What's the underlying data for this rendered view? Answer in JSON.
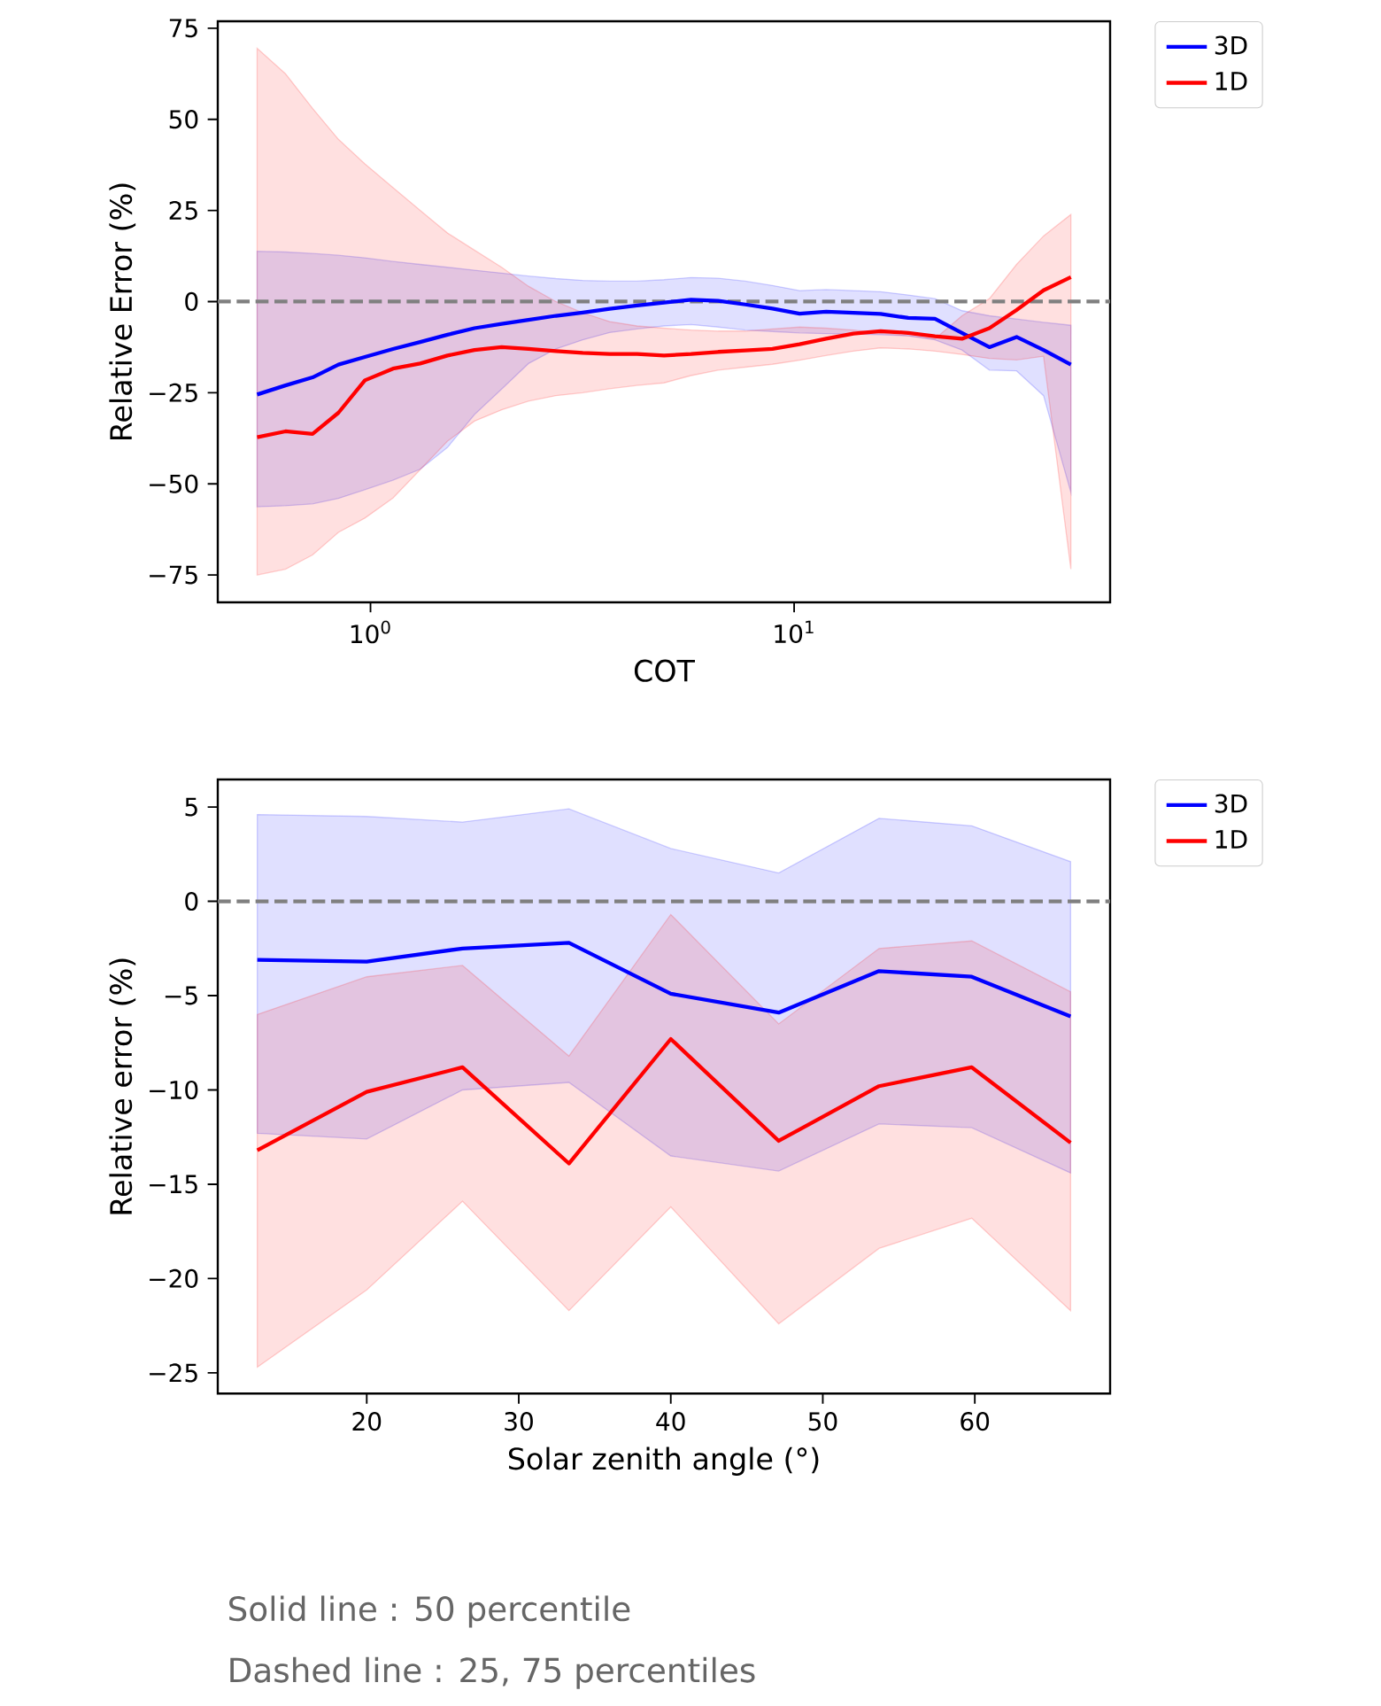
{
  "chart_data": [
    {
      "type": "line",
      "xlabel": "COT",
      "ylabel": "Relative Error (%)",
      "log": "x",
      "legend": "top right",
      "x": [
        0.54,
        0.63,
        0.73,
        0.84,
        0.97,
        1.13,
        1.31,
        1.52,
        1.76,
        2.04,
        2.36,
        2.74,
        3.17,
        3.67,
        4.26,
        4.93,
        5.71,
        6.62,
        7.67,
        8.89,
        10.3,
        11.9,
        13.8,
        16.0,
        18.6,
        21.5,
        24.9,
        28.9,
        33.5,
        38.8,
        45.0
      ],
      "series": [
        {
          "name": "3D",
          "color": "#0000ff",
          "values": [
            -25.5,
            -23,
            -20.8,
            -17.3,
            -15.2,
            -13,
            -11.1,
            -9.1,
            -7.3,
            -6.1,
            -5,
            -3.9,
            -3,
            -2,
            -1.1,
            -0.3,
            0.5,
            0.2,
            -0.8,
            -1.9,
            -3.3,
            -2.8,
            -3.1,
            -3.4,
            -4.5,
            -4.7,
            -8.6,
            -12.5,
            -9.7,
            -13.3,
            -17.3
          ],
          "upper": [
            13.8,
            13.6,
            13.2,
            12.7,
            12.0,
            11.0,
            10.2,
            9.4,
            8.6,
            7.8,
            7.0,
            6.3,
            5.8,
            5.6,
            5.6,
            6.0,
            6.6,
            6.4,
            5.6,
            4.4,
            3.0,
            3.3,
            3.0,
            2.7,
            1.8,
            0.8,
            -2.5,
            -3.9,
            -4.8,
            -5.7,
            -6.5
          ],
          "lower": [
            -56.3,
            -56,
            -55.5,
            -54,
            -51.6,
            -49,
            -46,
            -40,
            -31,
            -24,
            -17,
            -13,
            -10.5,
            -8.5,
            -7.5,
            -6.7,
            -6.3,
            -7,
            -7.8,
            -8.2,
            -8.6,
            -8.8,
            -8.9,
            -9.1,
            -9.4,
            -10.5,
            -13.3,
            -18.8,
            -19,
            -25.8,
            -52.3
          ]
        },
        {
          "name": "1D",
          "color": "#ff0000",
          "values": [
            -37.2,
            -35.6,
            -36.3,
            -30.5,
            -21.6,
            -18.4,
            -17,
            -14.8,
            -13.3,
            -12.5,
            -13,
            -13.6,
            -14.1,
            -14.4,
            -14.4,
            -14.8,
            -14.4,
            -13.8,
            -13.4,
            -13,
            -11.7,
            -10.2,
            -8.8,
            -8.1,
            -8.6,
            -9.5,
            -10.2,
            -7.3,
            -2.3,
            3.1,
            6.7
          ],
          "upper": [
            69.5,
            62.5,
            53,
            44.5,
            37.8,
            31.3,
            25,
            18.8,
            14.1,
            9.4,
            4.2,
            0,
            -3.1,
            -5.5,
            -6.7,
            -7.3,
            -7.8,
            -8.1,
            -8.1,
            -7.5,
            -7,
            -7.3,
            -7.8,
            -8.6,
            -9.4,
            -10.2,
            -3.9,
            0.8,
            10.2,
            18,
            23.9
          ],
          "lower": [
            -75,
            -73.4,
            -69.5,
            -63.3,
            -59.4,
            -53.9,
            -46.1,
            -38.3,
            -32.8,
            -29.7,
            -27.3,
            -25.8,
            -25,
            -23.9,
            -23,
            -22.3,
            -20.3,
            -18.8,
            -18,
            -17.2,
            -16.1,
            -14.8,
            -13.6,
            -12.7,
            -13,
            -13.6,
            -14.5,
            -15.6,
            -16,
            -15,
            -73.4
          ]
        }
      ],
      "xlim": [
        0.436,
        55.7
      ],
      "ylim": [
        -82.5,
        76.9
      ],
      "xticks": [
        {
          "value": 1,
          "label": "10$^{0}$"
        },
        {
          "value": 10,
          "label": "10$^{1}$"
        }
      ],
      "yticks": [
        75,
        50,
        25,
        0,
        {
          "value": -25,
          "label": "−25"
        },
        {
          "value": -50,
          "label": "−50"
        },
        {
          "value": -75,
          "label": "−75"
        }
      ],
      "ref_lines": [
        {
          "axis": "y",
          "value": 0,
          "color": "#808080",
          "line_style": "dashed"
        }
      ]
    },
    {
      "type": "line",
      "xlabel": "Solar zenith angle (°)",
      "ylabel": "Relative error (%)",
      "legend": "top right",
      "x": [
        12.8,
        20.0,
        26.3,
        33.3,
        40.0,
        47.1,
        53.7,
        59.8,
        66.3
      ],
      "series": [
        {
          "name": "3D",
          "color": "#0000ff",
          "values": [
            -3.1,
            -3.2,
            -2.5,
            -2.2,
            -4.9,
            -5.9,
            -3.7,
            -4.0,
            -6.1
          ],
          "upper": [
            4.6,
            4.5,
            4.2,
            4.9,
            2.8,
            1.5,
            4.4,
            4.0,
            2.1
          ],
          "lower": [
            -12.3,
            -12.6,
            -10.0,
            -9.6,
            -13.5,
            -14.3,
            -11.8,
            -12.0,
            -14.4
          ]
        },
        {
          "name": "1D",
          "color": "#ff0000",
          "values": [
            -13.2,
            -10.1,
            -8.8,
            -13.9,
            -7.3,
            -12.7,
            -9.8,
            -8.8,
            -12.8
          ],
          "upper": [
            -6.0,
            -4.0,
            -3.4,
            -8.2,
            -0.7,
            -6.5,
            -2.5,
            -2.1,
            -4.8
          ],
          "lower": [
            -24.7,
            -20.6,
            -15.9,
            -21.7,
            -16.2,
            -22.4,
            -18.4,
            -16.8,
            -21.7
          ]
        }
      ],
      "xlim": [
        10.2,
        68.9
      ],
      "ylim": [
        -26.1,
        6.46
      ],
      "xticks": [
        20,
        30,
        40,
        50,
        60
      ],
      "yticks": [
        5,
        0,
        {
          "value": -5,
          "label": "−5"
        },
        {
          "value": -10,
          "label": "−10"
        },
        {
          "value": -15,
          "label": "−15"
        },
        {
          "value": -20,
          "label": "−20"
        },
        {
          "value": -25,
          "label": "−25"
        }
      ],
      "ref_lines": [
        {
          "axis": "y",
          "value": 0,
          "color": "#808080",
          "line_style": "dashed"
        }
      ],
      "annotations": [
        "Solid line :  50 percentile",
        "Dashed line : 25, 75 percentiles"
      ]
    }
  ]
}
